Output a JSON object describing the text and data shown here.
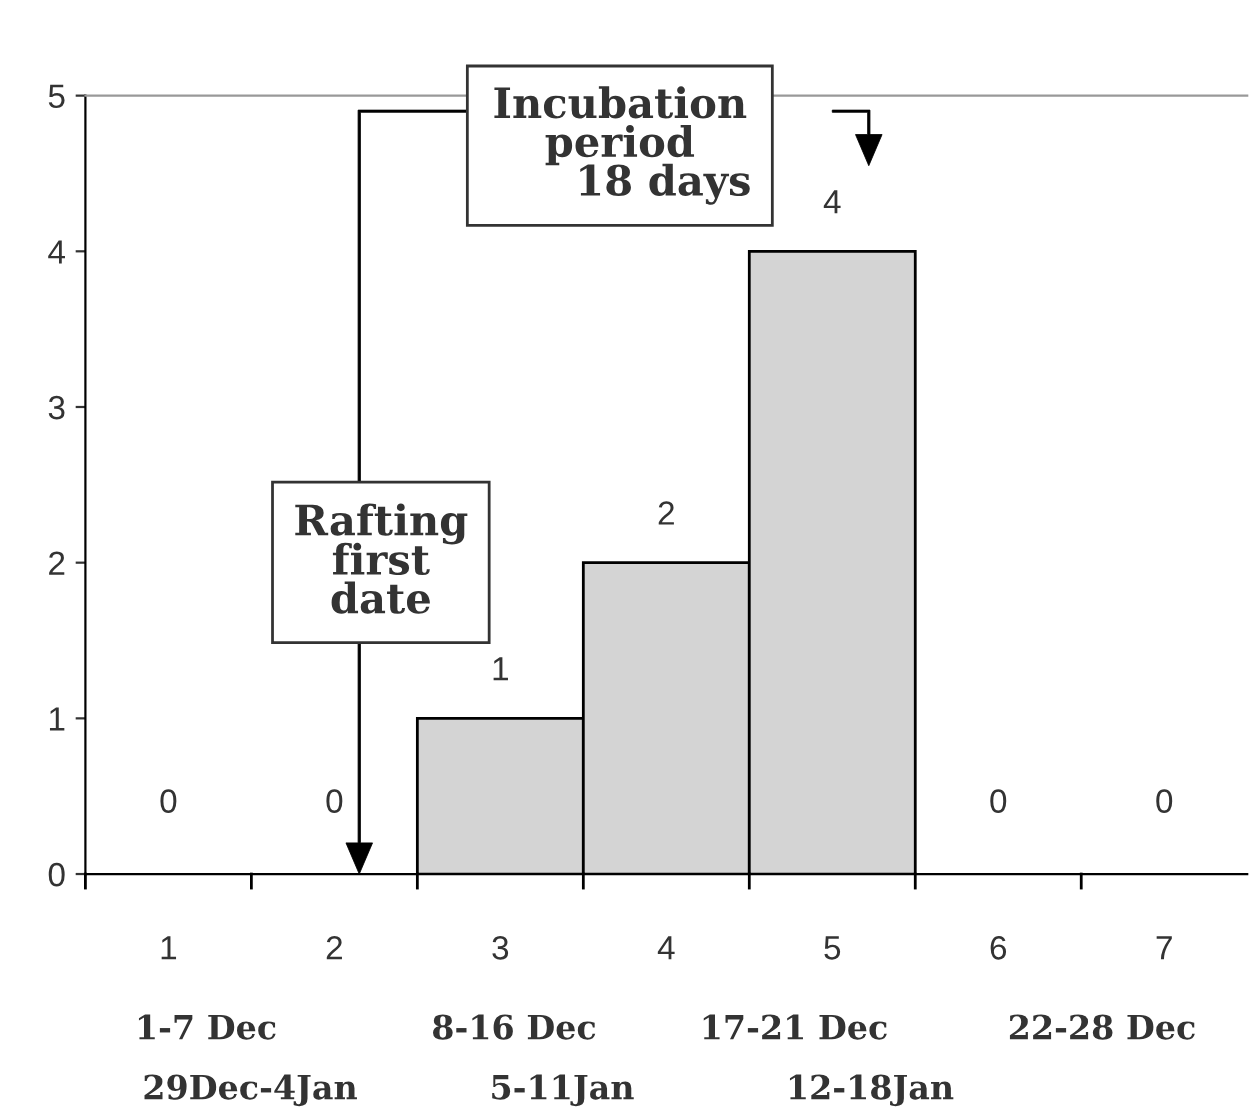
{
  "chart_data": {
    "type": "bar",
    "categories": [
      "1",
      "2",
      "3",
      "4",
      "5",
      "6",
      "7"
    ],
    "values": [
      0,
      0,
      1,
      2,
      4,
      0,
      0
    ],
    "color": "#d4d4d4",
    "ylim": [
      0,
      5
    ],
    "yticks": [
      0,
      1,
      2,
      3,
      4,
      5
    ],
    "grid": false,
    "data_labels": true,
    "annotations": [
      "Incubation\nperiod\n      18 days",
      "Rafting\nfirst\ndate",
      "1-7 Dec",
      "8-16 Dec",
      "17-21 Dec",
      "22-28 Dec",
      "29Dec-4Jan",
      "5-11Jan",
      "12-18Jan"
    ]
  }
}
